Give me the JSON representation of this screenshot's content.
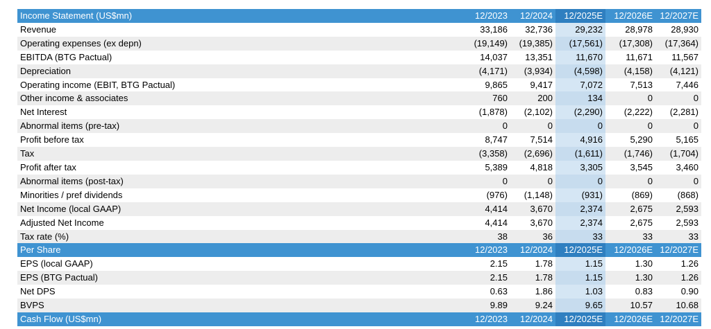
{
  "sections": [
    {
      "title": "Income Statement (US$mn)",
      "periods": [
        "12/2023",
        "12/2024",
        "12/2025E",
        "12/2026E",
        "12/2027E"
      ],
      "rows": [
        {
          "label": "Revenue",
          "values": [
            "33,186",
            "32,736",
            "29,232",
            "28,978",
            "28,930"
          ]
        },
        {
          "label": "Operating expenses (ex depn)",
          "values": [
            "(19,149)",
            "(19,385)",
            "(17,561)",
            "(17,308)",
            "(17,364)"
          ]
        },
        {
          "label": "EBITDA (BTG Pactual)",
          "values": [
            "14,037",
            "13,351",
            "11,670",
            "11,671",
            "11,567"
          ]
        },
        {
          "label": "Depreciation",
          "values": [
            "(4,171)",
            "(3,934)",
            "(4,598)",
            "(4,158)",
            "(4,121)"
          ]
        },
        {
          "label": "Operating income (EBIT, BTG Pactual)",
          "values": [
            "9,865",
            "9,417",
            "7,072",
            "7,513",
            "7,446"
          ]
        },
        {
          "label": "Other income & associates",
          "values": [
            "760",
            "200",
            "134",
            "0",
            "0"
          ]
        },
        {
          "label": "Net Interest",
          "values": [
            "(1,878)",
            "(2,102)",
            "(2,290)",
            "(2,222)",
            "(2,281)"
          ]
        },
        {
          "label": "Abnormal items (pre-tax)",
          "values": [
            "0",
            "0",
            "0",
            "0",
            "0"
          ]
        },
        {
          "label": "Profit before tax",
          "values": [
            "8,747",
            "7,514",
            "4,916",
            "5,290",
            "5,165"
          ]
        },
        {
          "label": "Tax",
          "values": [
            "(3,358)",
            "(2,696)",
            "(1,611)",
            "(1,746)",
            "(1,704)"
          ]
        },
        {
          "label": "Profit after tax",
          "values": [
            "5,389",
            "4,818",
            "3,305",
            "3,545",
            "3,460"
          ]
        },
        {
          "label": "Abnormal items (post-tax)",
          "values": [
            "0",
            "0",
            "0",
            "0",
            "0"
          ]
        },
        {
          "label": "Minorities / pref dividends",
          "values": [
            "(976)",
            "(1,148)",
            "(931)",
            "(869)",
            "(868)"
          ]
        },
        {
          "label": "Net Income (local GAAP)",
          "values": [
            "4,414",
            "3,670",
            "2,374",
            "2,675",
            "2,593"
          ]
        },
        {
          "label": "Adjusted Net Income",
          "values": [
            "4,414",
            "3,670",
            "2,374",
            "2,675",
            "2,593"
          ]
        },
        {
          "label": "Tax rate (%)",
          "values": [
            "38",
            "36",
            "33",
            "33",
            "33"
          ]
        }
      ]
    },
    {
      "title": "Per Share",
      "periods": [
        "12/2023",
        "12/2024",
        "12/2025E",
        "12/2026E",
        "12/2027E"
      ],
      "rows": [
        {
          "label": "EPS (local GAAP)",
          "values": [
            "2.15",
            "1.78",
            "1.15",
            "1.30",
            "1.26"
          ]
        },
        {
          "label": "EPS (BTG Pactual)",
          "values": [
            "2.15",
            "1.78",
            "1.15",
            "1.30",
            "1.26"
          ]
        },
        {
          "label": "Net DPS",
          "values": [
            "0.63",
            "1.86",
            "1.03",
            "0.83",
            "0.90"
          ]
        },
        {
          "label": "BVPS",
          "values": [
            "9.89",
            "9.24",
            "9.65",
            "10.57",
            "10.68"
          ]
        }
      ]
    },
    {
      "title": "Cash Flow (US$mn)",
      "periods": [
        "12/2023",
        "12/2024",
        "12/2025E",
        "12/2026E",
        "12/2027E"
      ],
      "rows": []
    }
  ],
  "highlight_period": "12/2025E",
  "colors": {
    "section_header": "#3f93d1",
    "section_header_highlight": "#2f7fc0",
    "highlight_column": "#d5e6f4",
    "row_alt": "#ededed"
  }
}
